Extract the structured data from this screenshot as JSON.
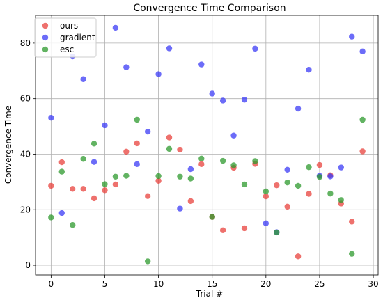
{
  "chart_data": {
    "type": "scatter",
    "title": "Convergence Time Comparison",
    "xlabel": "Trial #",
    "ylabel": "Convergence Time",
    "xlim": [
      -1.45,
      30.45
    ],
    "ylim": [
      -3.5,
      90
    ],
    "xticks": [
      0,
      5,
      10,
      15,
      20,
      25,
      30
    ],
    "yticks": [
      0,
      20,
      40,
      60,
      80
    ],
    "grid": true,
    "legend_position": "upper-left",
    "series": [
      {
        "name": "ours",
        "color": "#e8413c",
        "x": [
          0,
          1,
          2,
          3,
          4,
          5,
          6,
          7,
          8,
          9,
          10,
          11,
          12,
          13,
          14,
          15,
          16,
          17,
          18,
          19,
          20,
          21,
          22,
          23,
          24,
          25,
          26,
          27,
          28,
          29
        ],
        "y": [
          28.6,
          37.1,
          27.5,
          27.5,
          24.1,
          27.0,
          29.1,
          40.9,
          43.9,
          24.9,
          30.4,
          46.0,
          41.6,
          23.1,
          36.4,
          17.4,
          12.6,
          35.1,
          13.3,
          36.5,
          24.8,
          28.8,
          21.1,
          3.2,
          25.7,
          36.1,
          32.4,
          22.2,
          15.7,
          41.0
        ]
      },
      {
        "name": "gradient",
        "color": "#3b3bf5",
        "x": [
          0,
          1,
          2,
          3,
          4,
          5,
          6,
          7,
          8,
          9,
          10,
          11,
          12,
          13,
          14,
          15,
          16,
          17,
          18,
          19,
          20,
          21,
          22,
          23,
          24,
          25,
          26,
          27,
          28,
          29
        ],
        "y": [
          53.1,
          18.8,
          75.2,
          67.0,
          37.2,
          50.4,
          85.5,
          71.3,
          36.4,
          48.1,
          68.8,
          78.1,
          20.4,
          34.6,
          72.3,
          61.8,
          59.3,
          46.7,
          59.6,
          78.0,
          15.1,
          11.9,
          34.4,
          56.4,
          70.4,
          32.2,
          32.0,
          35.2,
          82.3,
          77.0
        ]
      },
      {
        "name": "esc",
        "color": "#2e9a2e",
        "x": [
          0,
          1,
          2,
          3,
          4,
          5,
          6,
          7,
          8,
          9,
          10,
          11,
          12,
          13,
          14,
          15,
          16,
          17,
          18,
          19,
          20,
          21,
          22,
          23,
          24,
          25,
          26,
          27,
          28,
          29
        ],
        "y": [
          17.2,
          33.7,
          14.5,
          38.3,
          43.8,
          29.2,
          31.9,
          32.2,
          52.4,
          1.4,
          32.1,
          41.9,
          31.9,
          31.2,
          38.4,
          17.4,
          37.6,
          36.0,
          29.1,
          37.5,
          26.6,
          11.8,
          29.8,
          28.6,
          35.3,
          31.8,
          25.8,
          23.5,
          4.1,
          52.4
        ]
      }
    ]
  }
}
